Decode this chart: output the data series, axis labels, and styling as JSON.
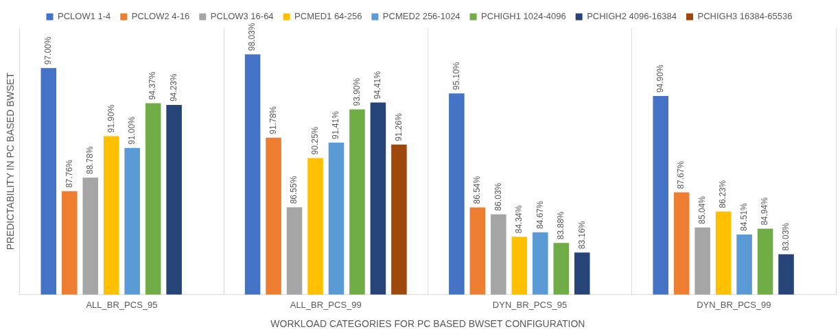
{
  "chart_data": {
    "type": "bar",
    "xlabel": "WORKLOAD CATEGORIES FOR PC BASED BWSET CONFIGURATION",
    "ylabel": "PREDICTABILITY IN PC BASED BWSET",
    "categories": [
      "ALL_BR_PCS_95",
      "ALL_BR_PCS_99",
      "DYN_BR_PCS_95",
      "DYN_BR_PCS_99"
    ],
    "ylim": [
      80,
      100
    ],
    "tick_labels": "x",
    "grid": "x",
    "legend": "top",
    "series": [
      {
        "name": "PCLOW1 1-4",
        "color": "#4472c4",
        "values": [
          97.0,
          98.03,
          95.1,
          94.9
        ],
        "value_labels": [
          "97.00%",
          "98.03%",
          "95.10%",
          "94.90%"
        ]
      },
      {
        "name": "PCLOW2 4-16",
        "color": "#ed7d31",
        "values": [
          87.76,
          91.78,
          86.54,
          87.67
        ],
        "value_labels": [
          "87.76%",
          "91.78%",
          "86.54%",
          "87.67%"
        ]
      },
      {
        "name": "PCLOW3 16-64",
        "color": "#a5a5a5",
        "values": [
          88.78,
          86.55,
          86.03,
          85.04
        ],
        "value_labels": [
          "88.78%",
          "86.55%",
          "86.03%",
          "85.04%"
        ]
      },
      {
        "name": "PCMED1 64-256",
        "color": "#ffc000",
        "values": [
          91.9,
          90.25,
          84.34,
          86.23
        ],
        "value_labels": [
          "91.90%",
          "90.25%",
          "84.34%",
          "86.23%"
        ]
      },
      {
        "name": "PCMED2 256-1024",
        "color": "#5b9bd5",
        "values": [
          91.0,
          91.41,
          84.67,
          84.51
        ],
        "value_labels": [
          "91.00%",
          "91.41%",
          "84.67%",
          "84.51%"
        ]
      },
      {
        "name": "PCHIGH1 1024-4096",
        "color": "#70ad47",
        "values": [
          94.37,
          93.9,
          83.88,
          84.94
        ],
        "value_labels": [
          "94.37%",
          "93.90%",
          "83.88%",
          "84.94%"
        ]
      },
      {
        "name": "PCHIGH2 4096-16384",
        "color": "#264478",
        "values": [
          94.23,
          94.41,
          83.16,
          83.03
        ],
        "value_labels": [
          "94.23%",
          "94.41%",
          "83.16%",
          "83.03%"
        ]
      },
      {
        "name": "PCHIGH3 16384-65536",
        "color": "#9e480e",
        "values": [
          null,
          91.26,
          null,
          null
        ],
        "value_labels": [
          null,
          "91.26%",
          null,
          null
        ]
      }
    ]
  }
}
